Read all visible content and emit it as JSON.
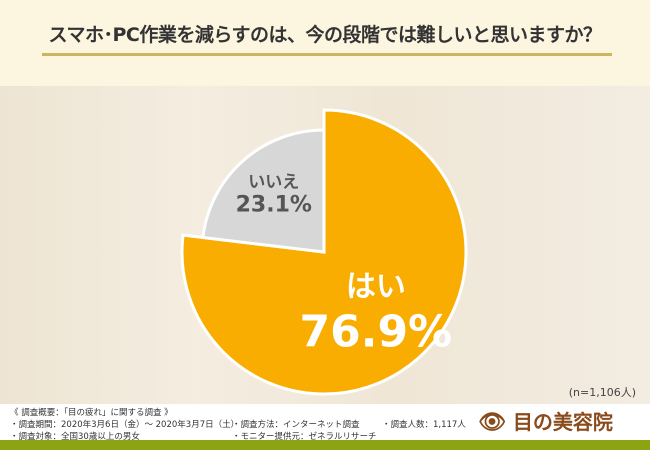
{
  "header": {
    "title": "スマホ･PC作業を減らすのは、今の段階では難しいと思いますか？"
  },
  "chart_data": {
    "type": "pie",
    "title": "スマホ･PC作業を減らすのは、今の段階では難しいと思いますか？",
    "slices": [
      {
        "label": "はい",
        "value": 76.9,
        "value_text": "76.9%",
        "color": "#f9ad00"
      },
      {
        "label": "いいえ",
        "value": 23.1,
        "value_text": "23.1%",
        "color": "#d7d7d7"
      }
    ],
    "sample_note": "(n=1,106人)"
  },
  "footer": {
    "summary": "《 調査概要：「目の疲れ」に関する調査 》",
    "period": "・調査期間：2020年3月6日（金）～ 2020年3月7日（土）",
    "target": "・調査対象：全国30歳以上の男女",
    "method": "・調査方法：インターネット調査",
    "provider": "・モニター提供元：ゼネラルリサーチ",
    "count": "・調査人数：1,117人",
    "logo_text": "目の美容院"
  }
}
